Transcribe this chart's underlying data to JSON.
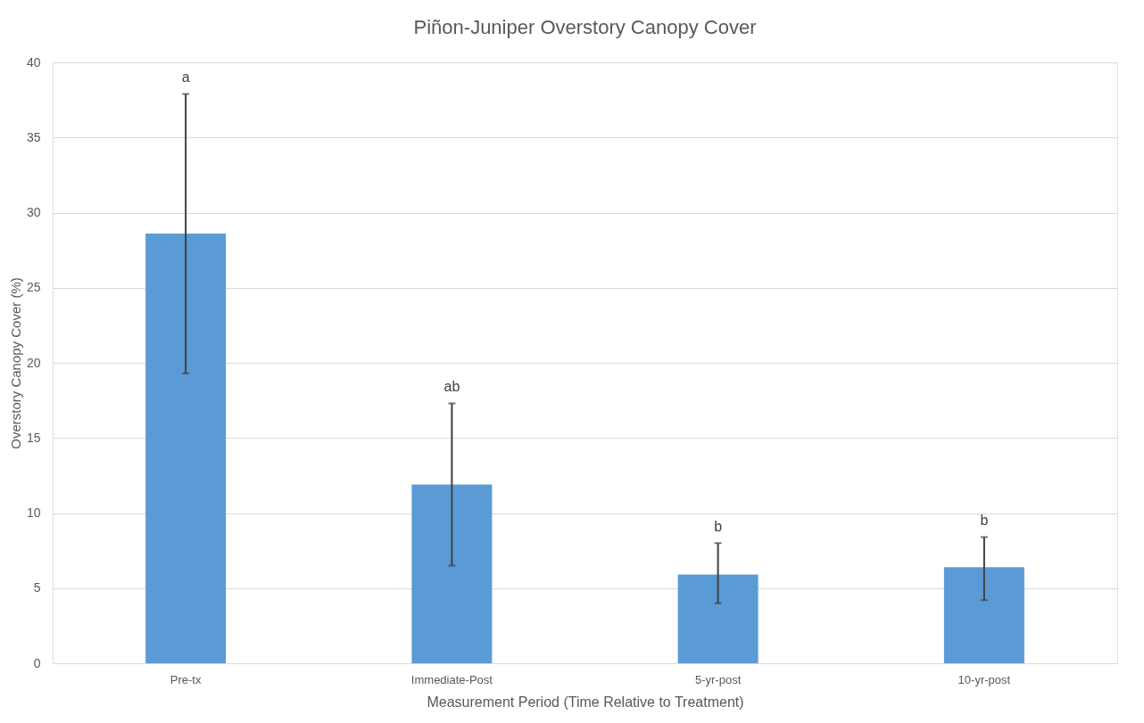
{
  "chart_data": {
    "type": "bar",
    "title": "Piñon-Juniper Overstory Canopy Cover",
    "xlabel": "Measurement Period (Time Relative to Treatment)",
    "ylabel": "Overstory Canopy Cover (%)",
    "categories": [
      "Pre-tx",
      "Immediate-Post",
      "5-yr-post",
      "10-yr-post"
    ],
    "values": [
      28.6,
      11.9,
      5.9,
      6.4
    ],
    "color": "#5b9bd5",
    "errors": [
      [
        19.3,
        37.9
      ],
      [
        6.5,
        17.3
      ],
      [
        4.0,
        8.0
      ],
      [
        4.2,
        8.4
      ]
    ],
    "ylim": [
      0,
      40
    ],
    "yticks": [
      0,
      5,
      10,
      15,
      20,
      25,
      30,
      35,
      40
    ],
    "grid": "y",
    "annotations": [
      "a",
      "ab",
      "b",
      "b"
    ]
  }
}
